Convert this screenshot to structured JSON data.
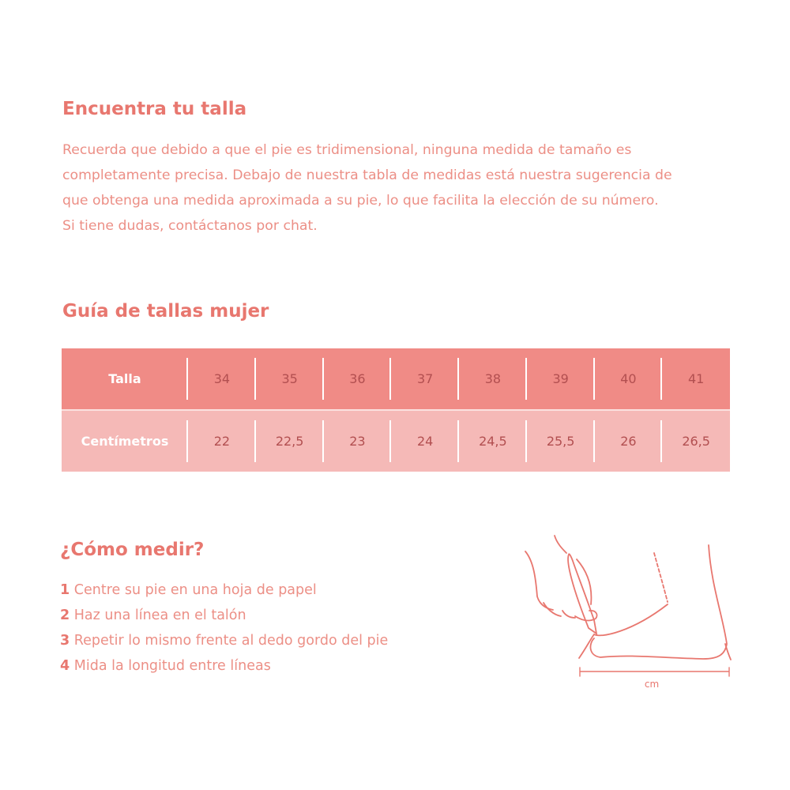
{
  "intro": {
    "title": "Encuentra tu talla",
    "lines": [
      "Recuerda que debido a que el pie es tridimensional, ninguna medida de tamaño es",
      "completamente precisa. Debajo de nuestra tabla de medidas está nuestra sugerencia de",
      "que obtenga una medida aproximada a su pie, lo que facilita la elección de su número.",
      "Si tiene dudas, contáctanos por chat."
    ]
  },
  "guide": {
    "title": "Guía de tallas mujer",
    "rows": [
      {
        "label": "Talla",
        "values": [
          "34",
          "35",
          "36",
          "37",
          "38",
          "39",
          "40",
          "41"
        ]
      },
      {
        "label": "Centímetros",
        "values": [
          "22",
          "22,5",
          "23",
          "24",
          "24,5",
          "25,5",
          "26",
          "26,5"
        ]
      }
    ],
    "colors": {
      "header_row": "#f08b86",
      "second_row": "#f5b9b7",
      "title": "#e8776f"
    }
  },
  "measure": {
    "title": "¿Cómo medir?",
    "steps": [
      {
        "num": "1",
        "text": "Centre su pie en una hoja de papel"
      },
      {
        "num": "2",
        "text": "Haz una línea en el talón"
      },
      {
        "num": "3",
        "text": "Repetir lo mismo frente al dedo gordo del pie"
      },
      {
        "num": "4",
        "text": "Mida la longitud entre líneas"
      }
    ],
    "illustration_label": "cm"
  }
}
